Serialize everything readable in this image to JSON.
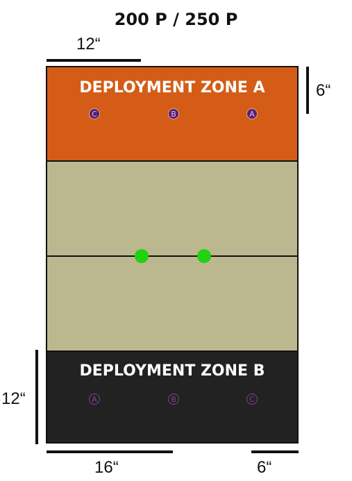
{
  "title": "200 P / 250 P",
  "measures": {
    "top_left": "12“",
    "right_top": "6“",
    "left_bottom": "12“",
    "bottom_left": "16“",
    "bottom_right": "6“"
  },
  "zones": {
    "a": {
      "label": "DEPLOYMENT ZONE A",
      "color": "#d55c17",
      "markers": [
        "C",
        "B",
        "A"
      ]
    },
    "middle": {
      "color": "#bbb890"
    },
    "b": {
      "label": "DEPLOYMENT ZONE B",
      "color": "#222222",
      "markers": [
        "A",
        "B",
        "C"
      ]
    }
  },
  "objectives": {
    "count": 2,
    "color": "#22d10f"
  }
}
